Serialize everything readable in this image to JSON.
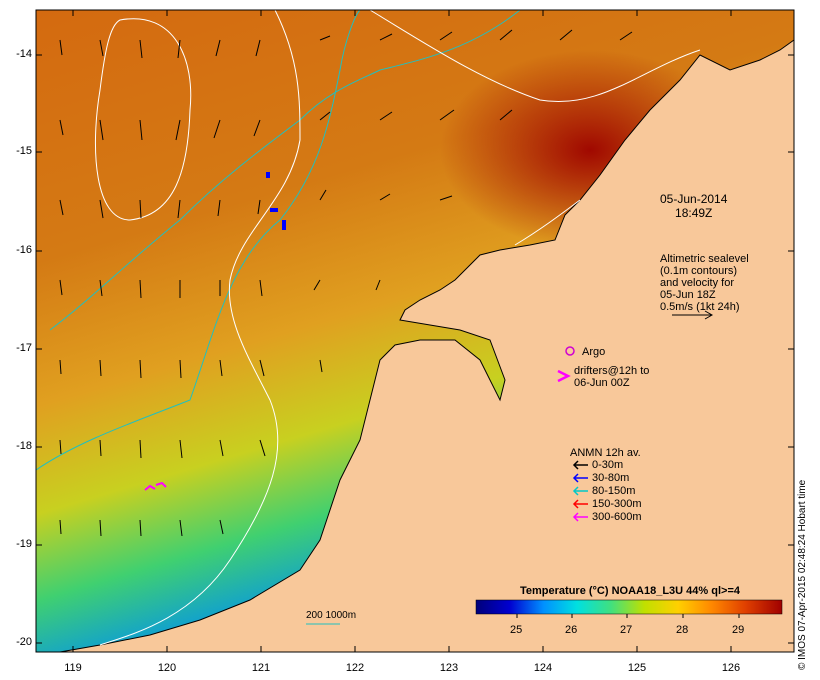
{
  "map": {
    "region": "North-west Australian shelf (Kimberley)",
    "land_color": "#f8c89a",
    "frame_color": "#000000",
    "x_ticks": [
      "119",
      "120",
      "121",
      "122",
      "123",
      "124",
      "125",
      "126"
    ],
    "y_ticks": [
      "-14",
      "-15",
      "-16",
      "-17",
      "-18",
      "-19",
      "-20"
    ],
    "lon_range": [
      118.6,
      126.7
    ],
    "lat_range": [
      -20.1,
      -13.6
    ]
  },
  "annotations": {
    "date": "05-Jun-2014",
    "time": "18:49Z",
    "altimetry": [
      "Altimetric sealevel",
      "(0.1m contours)",
      "and velocity for",
      "05-Jun 18Z",
      "0.5m/s (1kt 24h)"
    ],
    "argo": "Argo",
    "drifters": [
      "drifters@12h to",
      "06-Jun 00Z"
    ],
    "isobath": "200  1000m"
  },
  "legend": {
    "title": "ANMN 12h av.",
    "items": [
      {
        "label": "0-30m",
        "color": "#000000"
      },
      {
        "label": "30-80m",
        "color": "#0000ff"
      },
      {
        "label": "80-150m",
        "color": "#00c8c8"
      },
      {
        "label": "150-300m",
        "color": "#ff0000"
      },
      {
        "label": "300-600m",
        "color": "#ff00ff"
      }
    ]
  },
  "colorbar": {
    "title": "Temperature (°C) NOAA18_L3U 44% ql>=4",
    "ticks": [
      "25",
      "26",
      "27",
      "28",
      "29"
    ],
    "colors": [
      "#00007a",
      "#0000d0",
      "#0090ff",
      "#00e0e0",
      "#40e080",
      "#c0e000",
      "#ffd000",
      "#ff8800",
      "#e04000",
      "#a00000"
    ]
  },
  "footer": "© IMOS 07-Apr-2015 02:48:24 Hobart time"
}
